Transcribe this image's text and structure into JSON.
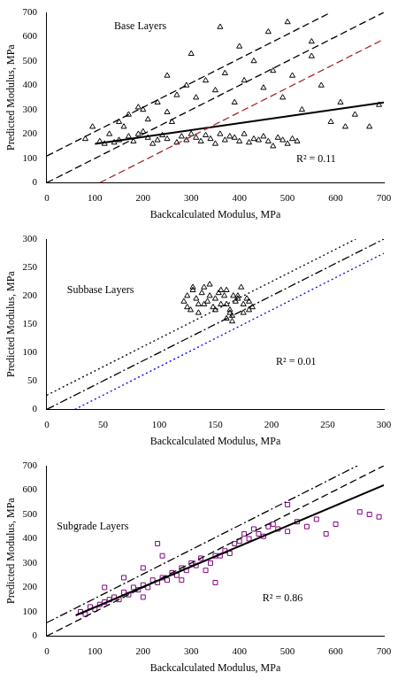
{
  "chart_data": [
    {
      "type": "scatter",
      "x_label": "Backcalculated Modulus, MPa",
      "y_label": "Predicted Modulus, MPa",
      "annotations": [
        "Base Layers",
        "R² = 0.11"
      ],
      "xlim": [
        0,
        700
      ],
      "ylim": [
        0,
        700
      ],
      "xticks": [
        0,
        100,
        200,
        300,
        400,
        500,
        600,
        700
      ],
      "yticks": [
        0,
        100,
        200,
        300,
        400,
        500,
        600,
        700
      ],
      "grid": false,
      "series": [
        {
          "type": "scatter",
          "marker": "triangle",
          "color": "#000000",
          "x": [
            80,
            95,
            110,
            120,
            130,
            140,
            150,
            160,
            170,
            180,
            190,
            200,
            210,
            220,
            230,
            240,
            250,
            260,
            270,
            280,
            290,
            300,
            310,
            320,
            330,
            340,
            350,
            360,
            370,
            380,
            390,
            400,
            410,
            420,
            430,
            440,
            450,
            460,
            470,
            480,
            490,
            500,
            510,
            520,
            150,
            170,
            190,
            210,
            230,
            250,
            270,
            290,
            310,
            330,
            350,
            370,
            390,
            410,
            430,
            450,
            470,
            490,
            510,
            530,
            550,
            570,
            590,
            610,
            640,
            670,
            690,
            360,
            300,
            460,
            500,
            250,
            200,
            400,
            550,
            620
          ],
          "values": [
            180,
            230,
            170,
            160,
            200,
            165,
            175,
            230,
            190,
            170,
            200,
            210,
            185,
            160,
            175,
            195,
            180,
            250,
            165,
            190,
            175,
            200,
            185,
            170,
            195,
            180,
            160,
            200,
            175,
            190,
            185,
            170,
            200,
            165,
            180,
            175,
            190,
            170,
            150,
            185,
            175,
            160,
            180,
            170,
            250,
            280,
            310,
            260,
            330,
            290,
            360,
            400,
            350,
            420,
            380,
            450,
            330,
            420,
            500,
            390,
            460,
            350,
            440,
            300,
            520,
            400,
            250,
            330,
            280,
            230,
            320,
            640,
            530,
            620,
            660,
            440,
            300,
            560,
            580,
            230
          ]
        },
        {
          "type": "line",
          "line_style": "dashed",
          "color": "#000000",
          "x": [
            0,
            590
          ],
          "values": [
            110,
            700
          ]
        },
        {
          "type": "line",
          "line_style": "dashed",
          "color": "#000000",
          "x": [
            0,
            700
          ],
          "values": [
            0,
            700
          ]
        },
        {
          "type": "line",
          "line_style": "dashed",
          "color": "#a52a2a",
          "x": [
            110,
            700
          ],
          "values": [
            0,
            590
          ]
        },
        {
          "type": "line",
          "line_style": "solid",
          "color": "#000000",
          "x": [
            100,
            700
          ],
          "values": [
            160,
            330
          ]
        }
      ]
    },
    {
      "type": "scatter",
      "x_label": "Backcalculated Modulus, MPa",
      "y_label": "Predicted Modulus, MPa",
      "annotations": [
        "Subbase Layers",
        "R² = 0.01"
      ],
      "xlim": [
        0,
        300
      ],
      "ylim": [
        0,
        300
      ],
      "xticks": [
        0,
        50,
        100,
        150,
        200,
        250,
        300
      ],
      "yticks": [
        0,
        50,
        100,
        150,
        200,
        250,
        300
      ],
      "grid": false,
      "series": [
        {
          "type": "scatter",
          "marker": "triangle",
          "color": "#000000",
          "x": [
            122,
            125,
            128,
            130,
            133,
            135,
            138,
            140,
            143,
            145,
            148,
            150,
            153,
            155,
            158,
            160,
            163,
            165,
            168,
            170,
            173,
            175,
            178,
            180,
            183,
            125,
            130,
            135,
            140,
            145,
            150,
            155,
            160,
            165,
            170,
            175,
            180,
            160,
            163,
            166
          ],
          "values": [
            190,
            200,
            175,
            210,
            195,
            185,
            205,
            215,
            190,
            200,
            180,
            195,
            205,
            185,
            200,
            210,
            175,
            165,
            190,
            200,
            215,
            185,
            195,
            175,
            180,
            180,
            215,
            170,
            185,
            220,
            175,
            210,
            160,
            155,
            195,
            170,
            190,
            185,
            170,
            200
          ]
        },
        {
          "type": "line",
          "line_style": "dotted",
          "color": "#000000",
          "x": [
            0,
            275
          ],
          "values": [
            25,
            300
          ]
        },
        {
          "type": "line",
          "line_style": "dashdot",
          "color": "#000000",
          "x": [
            0,
            300
          ],
          "values": [
            0,
            300
          ]
        },
        {
          "type": "line",
          "line_style": "dotted",
          "color": "#0000ff",
          "x": [
            25,
            300
          ],
          "values": [
            0,
            275
          ]
        }
      ]
    },
    {
      "type": "scatter",
      "x_label": "Backcalculated Modulus, MPa",
      "y_label": "Predicted Modulus, MPa",
      "annotations": [
        "Subgrade Layers",
        "R² = 0.86"
      ],
      "xlim": [
        0,
        700
      ],
      "ylim": [
        0,
        700
      ],
      "xticks": [
        0,
        100,
        200,
        300,
        400,
        500,
        600,
        700
      ],
      "yticks": [
        0,
        100,
        200,
        300,
        400,
        500,
        600,
        700
      ],
      "grid": false,
      "series": [
        {
          "type": "scatter",
          "marker": "square",
          "color": "#800080",
          "x": [
            70,
            80,
            90,
            100,
            110,
            120,
            130,
            140,
            150,
            160,
            170,
            180,
            190,
            200,
            210,
            220,
            230,
            240,
            250,
            260,
            270,
            280,
            290,
            300,
            310,
            320,
            330,
            340,
            350,
            360,
            370,
            380,
            390,
            400,
            410,
            420,
            430,
            440,
            450,
            460,
            470,
            480,
            500,
            520,
            540,
            560,
            580,
            600,
            650,
            670,
            690,
            120,
            160,
            200,
            240,
            280,
            230,
            350,
            500,
            200
          ],
          "values": [
            100,
            90,
            120,
            110,
            130,
            140,
            150,
            160,
            150,
            180,
            170,
            200,
            190,
            210,
            200,
            230,
            220,
            240,
            230,
            260,
            250,
            280,
            270,
            300,
            290,
            320,
            270,
            300,
            330,
            330,
            350,
            340,
            380,
            390,
            420,
            400,
            440,
            420,
            410,
            450,
            460,
            440,
            430,
            470,
            450,
            480,
            420,
            460,
            510,
            500,
            490,
            200,
            240,
            280,
            330,
            230,
            380,
            220,
            540,
            160
          ]
        },
        {
          "type": "line",
          "line_style": "dashdot",
          "color": "#000000",
          "x": [
            0,
            645
          ],
          "values": [
            55,
            700
          ]
        },
        {
          "type": "line",
          "line_style": "dashed",
          "color": "#000000",
          "x": [
            0,
            700
          ],
          "values": [
            0,
            700
          ]
        },
        {
          "type": "line",
          "line_style": "solid",
          "color": "#000000",
          "x": [
            60,
            700
          ],
          "values": [
            85,
            620
          ]
        }
      ]
    }
  ]
}
